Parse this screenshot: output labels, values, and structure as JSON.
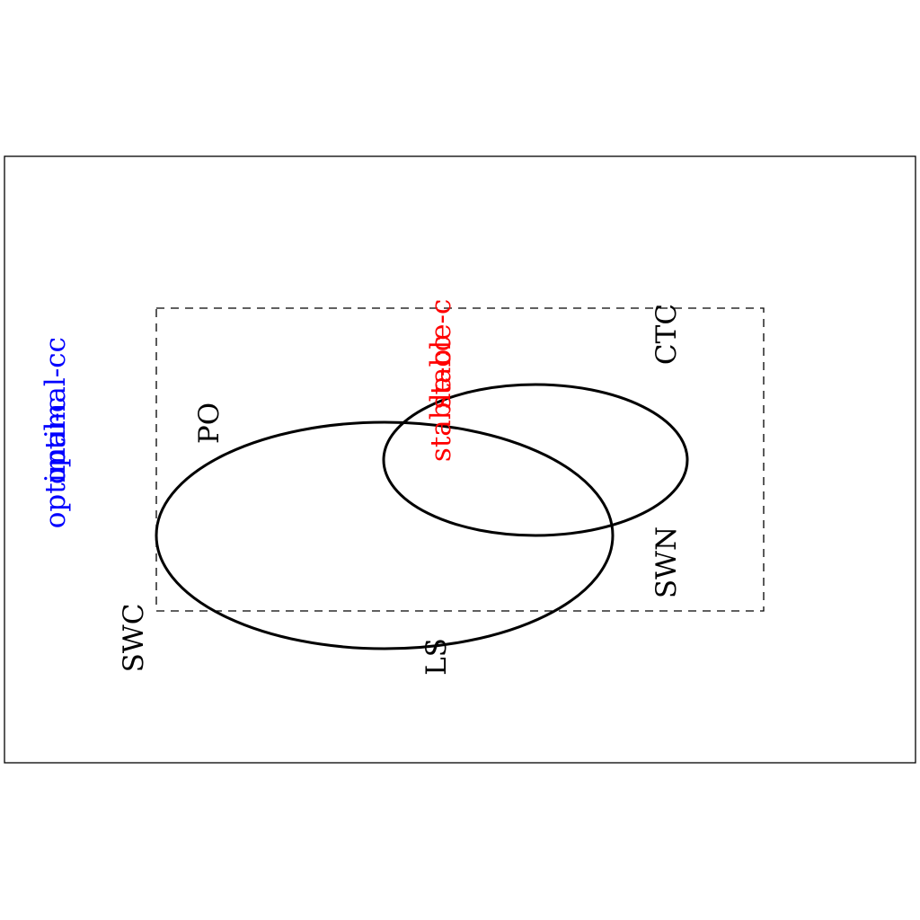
{
  "diagram": {
    "regions": {
      "swc": "SWC",
      "ls": "LS",
      "po": "PO",
      "swn": "SWN",
      "ctc": "CTC"
    },
    "overlay_labels": {
      "optimal_cc": "optimal-cc",
      "optimal_c": "optimal-c",
      "stable_c": "stable-c",
      "stable_cc": "stable-cc"
    },
    "colors": {
      "optimal": "#0000ff",
      "stable": "#ff0000",
      "outline": "#000000"
    }
  }
}
